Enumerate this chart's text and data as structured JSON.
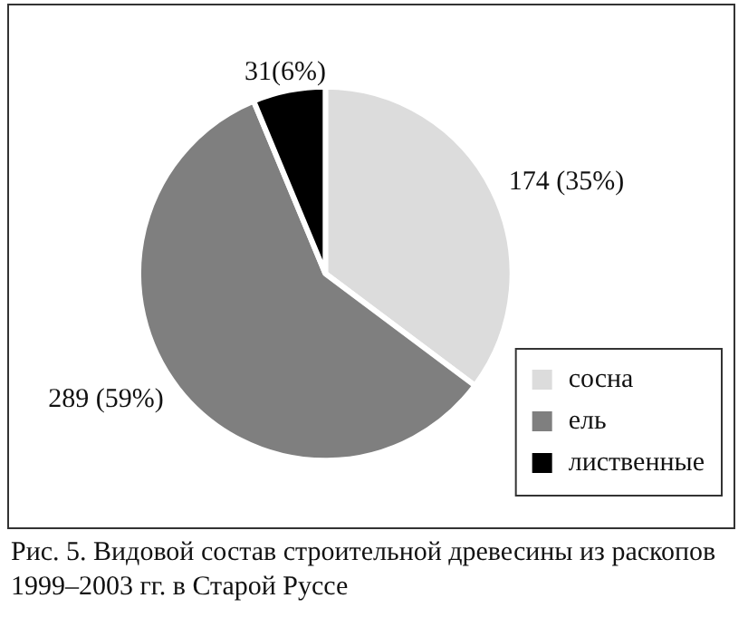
{
  "chart_data": {
    "type": "pie",
    "categories": [
      "сосна",
      "ель",
      "лиственные"
    ],
    "values": [
      174,
      289,
      31
    ],
    "colors": [
      "#dcdcdc",
      "#7f7f7f",
      "#000000"
    ],
    "value_labels": [
      "174 (35%)",
      "289 (59%)",
      "31(6%)"
    ],
    "legend": "bottom right",
    "annotations": [
      "Рис. 5. Видовой состав строительной древесины из раскопов 1999–2003 гг. в Старой Руссе"
    ]
  }
}
